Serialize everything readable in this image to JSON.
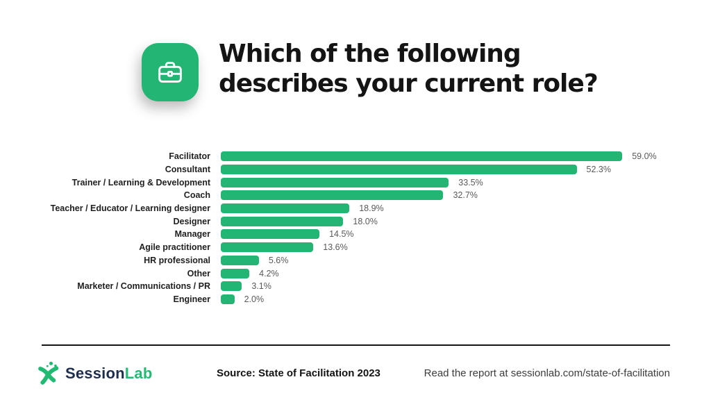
{
  "header": {
    "icon": "briefcase-icon",
    "title_line1": "Which of the following",
    "title_line2": "describes your current role?"
  },
  "chart_data": {
    "type": "bar",
    "orientation": "horizontal",
    "title": "Which of the following describes your current role?",
    "xlabel": "",
    "ylabel": "",
    "xlim": [
      0,
      66
    ],
    "grid": false,
    "bar_color": "#22B573",
    "value_label_position": "right-of-bar",
    "categories": [
      "Facilitator",
      "Consultant",
      "Trainer / Learning & Development",
      "Coach",
      "Teacher / Educator / Learning designer",
      "Designer",
      "Manager",
      "Agile practitioner",
      "HR professional",
      "Other",
      "Marketer / Communications / PR",
      "Engineer"
    ],
    "values": [
      59.0,
      52.3,
      33.5,
      32.7,
      18.9,
      18.0,
      14.5,
      13.6,
      5.6,
      4.2,
      3.1,
      2.0
    ],
    "value_labels": [
      "59.0%",
      "52.3%",
      "33.5%",
      "32.7%",
      "18.9%",
      "18.0%",
      "14.5%",
      "13.6%",
      "5.6%",
      "4.2%",
      "3.1%",
      "2.0%"
    ]
  },
  "footer": {
    "logo_session": "Session",
    "logo_lab": "Lab",
    "source": "Source: State of Facilitation 2023",
    "report_link": "Read the report at sessionlab.com/state-of-facilitation"
  },
  "colors": {
    "accent_green": "#22B573",
    "title_black": "#141414",
    "value_gray": "#595959",
    "logo_navy": "#1D2D4E",
    "logo_green": "#21BA72",
    "background": "#FFFFFF"
  }
}
